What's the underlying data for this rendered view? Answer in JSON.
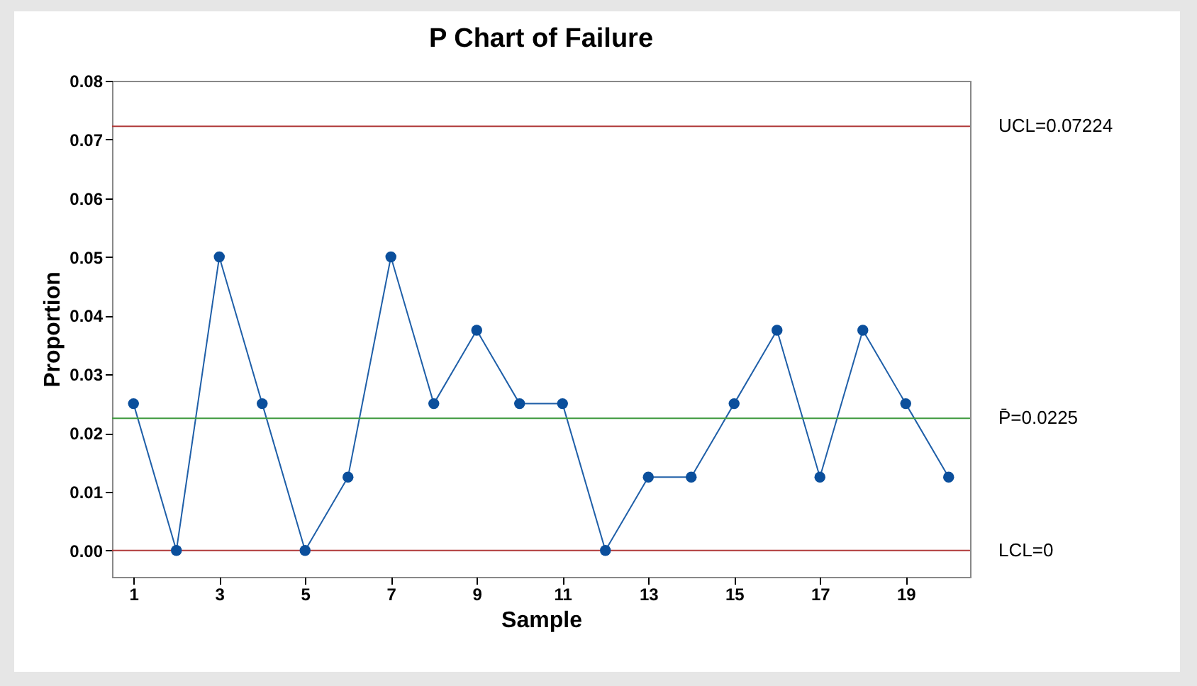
{
  "chart_data": {
    "type": "line",
    "title": "P Chart of Failure",
    "xlabel": "Sample",
    "ylabel": "Proportion",
    "x": [
      1,
      2,
      3,
      4,
      5,
      6,
      7,
      8,
      9,
      10,
      11,
      12,
      13,
      14,
      15,
      16,
      17,
      18,
      19,
      20
    ],
    "series": [
      {
        "color": "#1f5fa8",
        "values": [
          0.025,
          0,
          0.05,
          0.025,
          0,
          0.0125,
          0.05,
          0.025,
          0.0375,
          0.025,
          0.025,
          0,
          0.0125,
          0.0125,
          0.025,
          0.0375,
          0.0125,
          0.0375,
          0.025,
          0.0125
        ]
      }
    ],
    "marker": "circle",
    "line_style": "solid",
    "grid": false,
    "xlim": [
      0.5,
      20.5
    ],
    "xticks": [
      1,
      3,
      5,
      7,
      9,
      11,
      13,
      15,
      17,
      19
    ],
    "ylim": [
      -0.0045,
      0.08
    ],
    "yticks": [
      {
        "value": 0,
        "label": "0.00"
      },
      {
        "value": 0.01,
        "label": "0.01"
      },
      {
        "value": 0.02,
        "label": "0.02"
      },
      {
        "value": 0.03,
        "label": "0.03"
      },
      {
        "value": 0.04,
        "label": "0.04"
      },
      {
        "value": 0.05,
        "label": "0.05"
      },
      {
        "value": 0.06,
        "label": "0.06"
      },
      {
        "value": 0.07,
        "label": "0.07"
      },
      {
        "value": 0.08,
        "label": "0.08"
      }
    ],
    "ref_lines": [
      {
        "axis": "y",
        "value": 0.07224,
        "label": "UCL=0.07224",
        "color": "#b03a3a"
      },
      {
        "axis": "y",
        "value": 0.0225,
        "label": "P̄=0.0225",
        "color": "#3f9a3f"
      },
      {
        "axis": "y",
        "value": 0,
        "label": "LCL=0",
        "color": "#b03a3a"
      }
    ]
  }
}
